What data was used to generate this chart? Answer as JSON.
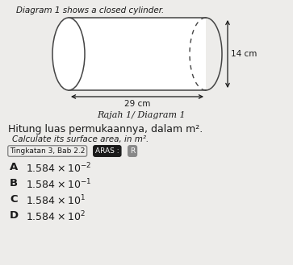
{
  "title_top": "Diagram 1 shows a closed cylinder.",
  "diagram_label": "Rajah 1/ Diagram 1",
  "length_label": "29 cm",
  "diameter_label": "14 cm",
  "question_malay": "Hitung luas permukaannya, dalam m².",
  "question_english": "Calculate its surface area, in m².",
  "tag1": "Tingkatan 3, Bab 2.2",
  "tag2": "ARAS :",
  "tag3": "R",
  "exponents": [
    "-2",
    "-1",
    "1",
    "2"
  ],
  "letters": [
    "A",
    "B",
    "C",
    "D"
  ],
  "bg_color": "#edecea",
  "text_color": "#1a1a1a",
  "cylinder_edge": "#444444",
  "tag1_edge": "#888888",
  "aras_bg": "#1a1a1a",
  "r_bg": "#888888"
}
